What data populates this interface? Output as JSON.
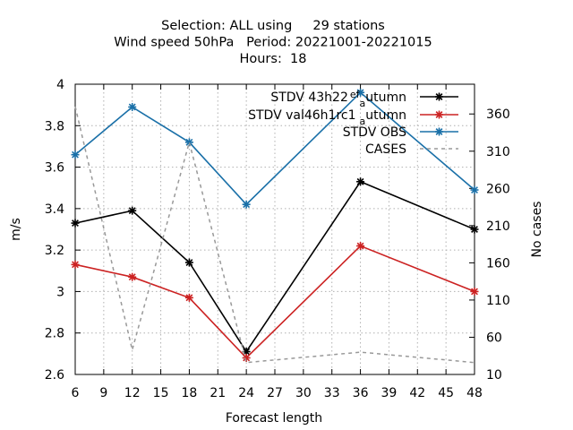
{
  "title_lines": [
    "Selection: ALL using     29 stations",
    "Wind speed 50hPa   Period: 20221001-20221015",
    "Hours:  18"
  ],
  "chart_data": {
    "type": "line",
    "x": [
      6,
      12,
      18,
      24,
      36,
      48
    ],
    "xticks": [
      6,
      9,
      12,
      15,
      18,
      21,
      24,
      27,
      30,
      33,
      36,
      39,
      42,
      45,
      48
    ],
    "xlim": [
      6,
      48
    ],
    "xlabel": "Forecast length",
    "ylabel": "m/s",
    "ylim": [
      2.6,
      4.0
    ],
    "yticks": [
      2.6,
      2.8,
      3.0,
      3.2,
      3.4,
      3.6,
      3.8,
      4.0
    ],
    "y2label": "No cases",
    "y2lim": [
      10,
      400
    ],
    "y2ticks": [
      10,
      60,
      110,
      160,
      210,
      260,
      310,
      360
    ],
    "grid": true,
    "legend_position": "top-right",
    "series": [
      {
        "name": "STDV 43h22_efa_autumn",
        "legend_text": "STDV 43h22",
        "legend_frag_a": "ef",
        "legend_frag_b": "a",
        "legend_frag_c": "utumn",
        "axis": "y",
        "color": "#000000",
        "dash": false,
        "marker": "star",
        "values": [
          3.33,
          3.39,
          3.14,
          2.71,
          3.53,
          3.3
        ]
      },
      {
        "name": "STDV val46h1rc1_autumn",
        "legend_text": "STDV val46h1rc1",
        "legend_frag_a": "",
        "legend_frag_b": "a",
        "legend_frag_c": "utumn",
        "axis": "y",
        "color": "#cc2222",
        "dash": false,
        "marker": "star",
        "values": [
          3.13,
          3.07,
          2.97,
          2.68,
          3.22,
          3.0
        ]
      },
      {
        "name": "STDV OBS",
        "legend_text": "STDV OBS",
        "legend_frag_a": "",
        "legend_frag_b": "",
        "legend_frag_c": "",
        "axis": "y",
        "color": "#1a70a8",
        "dash": false,
        "marker": "star",
        "values": [
          3.66,
          3.89,
          3.72,
          3.42,
          3.96,
          3.49
        ]
      },
      {
        "name": "CASES",
        "legend_text": "CASES",
        "legend_frag_a": "",
        "legend_frag_b": "",
        "legend_frag_c": "",
        "axis": "y2",
        "color": "#999999",
        "dash": true,
        "marker": "none",
        "values": [
          370,
          43,
          322,
          26,
          40,
          26
        ]
      }
    ]
  }
}
